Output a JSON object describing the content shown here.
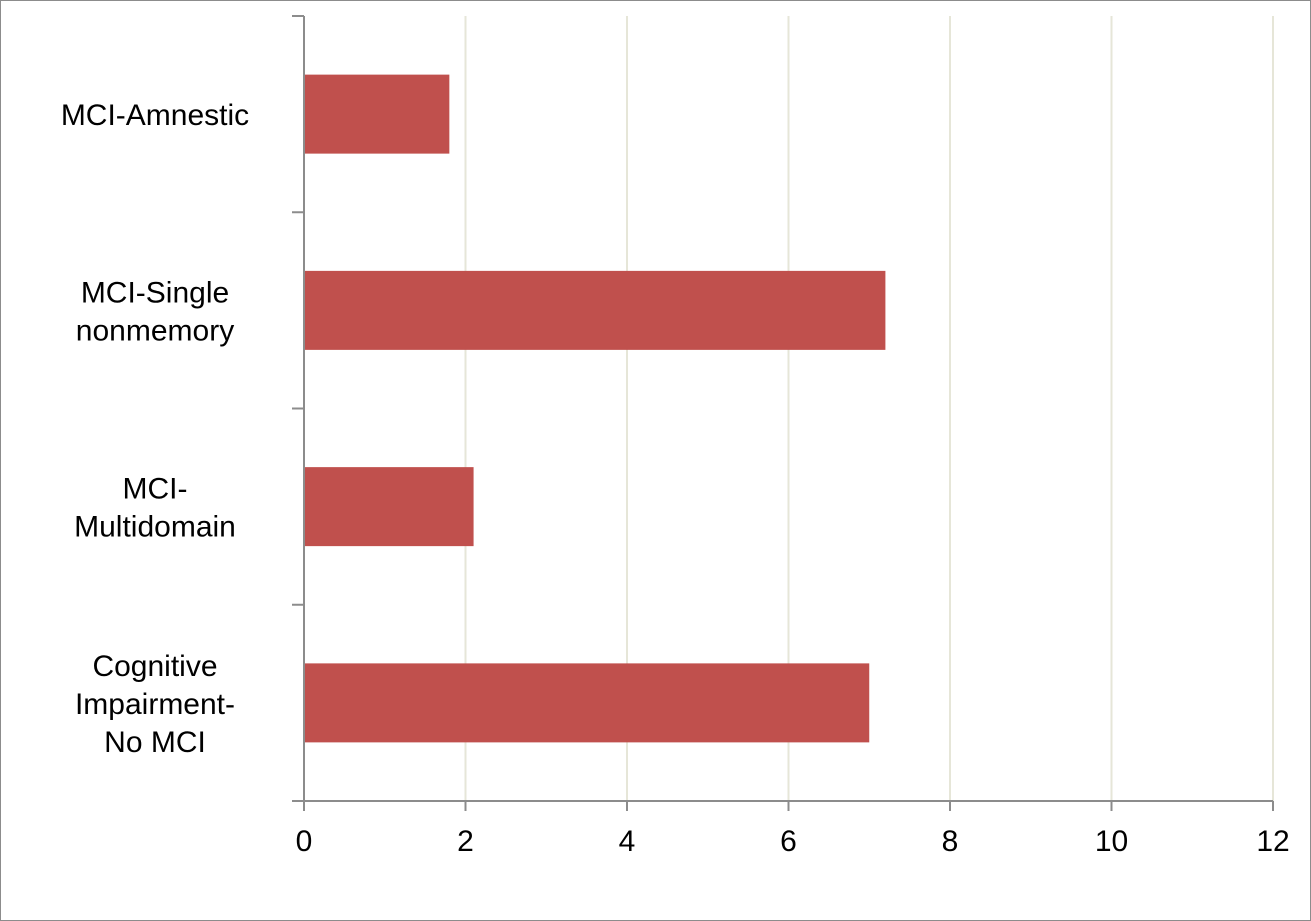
{
  "chart_data": {
    "type": "bar",
    "orientation": "horizontal",
    "categories": [
      "MCI-Amnestic",
      "MCI-Single nonmemory",
      "MCI-Multidomain",
      "Cognitive Impairment-No MCI"
    ],
    "category_label_lines": [
      [
        "MCI-Amnestic"
      ],
      [
        "MCI-Single",
        "nonmemory"
      ],
      [
        "MCI-",
        "Multidomain"
      ],
      [
        "Cognitive",
        "Impairment-",
        "No MCI"
      ]
    ],
    "values": [
      1.8,
      7.2,
      2.1,
      7.0
    ],
    "xlim": [
      0,
      12
    ],
    "x_ticks": [
      "0",
      "2",
      "4",
      "6",
      "8",
      "10",
      "12"
    ],
    "title": "",
    "xlabel": "",
    "ylabel": "",
    "grid": "vertical",
    "legend": "none",
    "colors": {
      "bar": "#c0504d",
      "grid": "#e6e6d8",
      "axis": "#8c8c8c"
    }
  }
}
